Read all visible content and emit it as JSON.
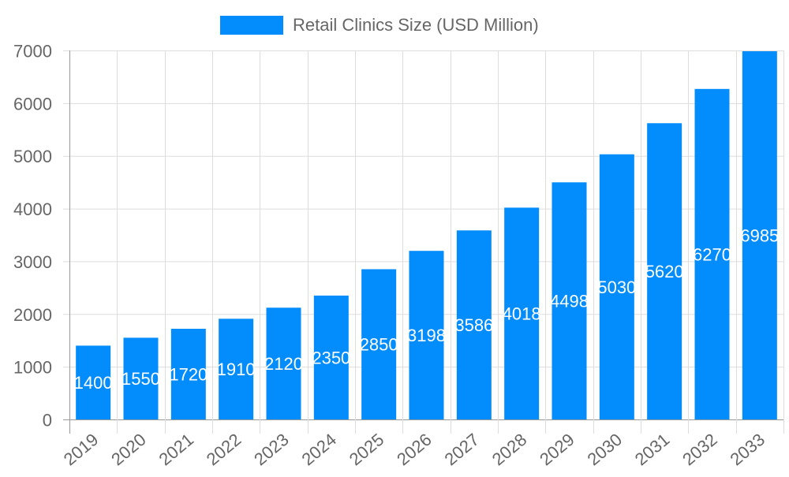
{
  "chart_data": {
    "type": "bar",
    "title": "",
    "xlabel": "",
    "ylabel": "",
    "legend": {
      "position": "top",
      "entries": [
        "Retail Clinics Size (USD Million)"
      ]
    },
    "categories": [
      "2019",
      "2020",
      "2021",
      "2022",
      "2023",
      "2024",
      "2025",
      "2026",
      "2027",
      "2028",
      "2029",
      "2030",
      "2031",
      "2032",
      "2033"
    ],
    "series": [
      {
        "name": "Retail Clinics Size (USD Million)",
        "values": [
          1400,
          1550,
          1720,
          1910,
          2120,
          2350,
          2850,
          3198,
          3586,
          4018,
          4498,
          5030,
          5620,
          6270,
          6985
        ],
        "color": "#038cfc"
      }
    ],
    "ylim": [
      0,
      7000
    ],
    "yticks": [
      0,
      1000,
      2000,
      3000,
      4000,
      5000,
      6000,
      7000
    ],
    "grid": true,
    "data_labels": true
  }
}
